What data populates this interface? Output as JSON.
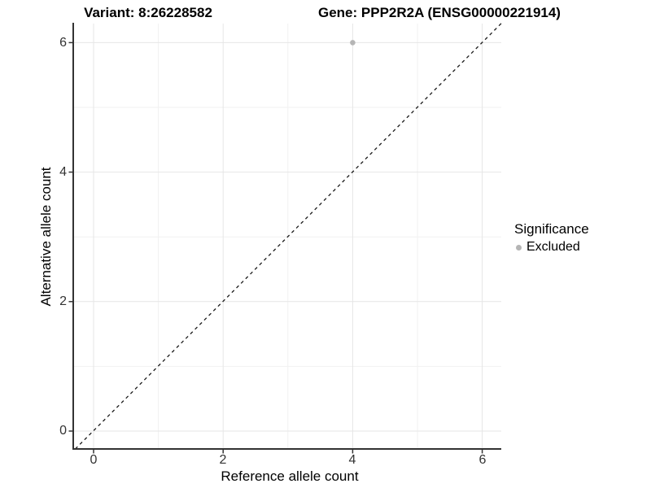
{
  "chart_data": {
    "type": "scatter",
    "title_variant": "Variant: 8:26228582",
    "title_gene": "Gene: PPP2R2A (ENSG00000221914)",
    "xlabel": "Reference allele count",
    "ylabel": "Alternative allele count",
    "x_ticks": [
      "0",
      "2",
      "4",
      "6"
    ],
    "y_ticks": [
      "0",
      "2",
      "4",
      "6"
    ],
    "xlim": [
      -0.3,
      6.3
    ],
    "ylim": [
      -0.3,
      6.3
    ],
    "grid": {
      "major_at": [
        0,
        2,
        4,
        6
      ],
      "minor_at": [
        1,
        3,
        5
      ],
      "visible": true
    },
    "points": [
      {
        "x": 4,
        "y": 6,
        "series": "Excluded",
        "color": "#b5b5b5"
      }
    ],
    "annotations": [
      {
        "type": "reference-line",
        "equation": "y = x",
        "style": "dashed",
        "color": "#000000"
      }
    ],
    "legend": {
      "title": "Significance",
      "position": "right",
      "entries": [
        {
          "label": "Excluded",
          "marker": "circle",
          "color": "#b5b5b5"
        }
      ]
    }
  },
  "colors": {
    "background": "#ffffff",
    "grid_major": "#e6e6e6",
    "grid_minor": "#f1f1f1",
    "axis_line": "#333333",
    "point": "#b5b5b5",
    "text": "#000000"
  }
}
